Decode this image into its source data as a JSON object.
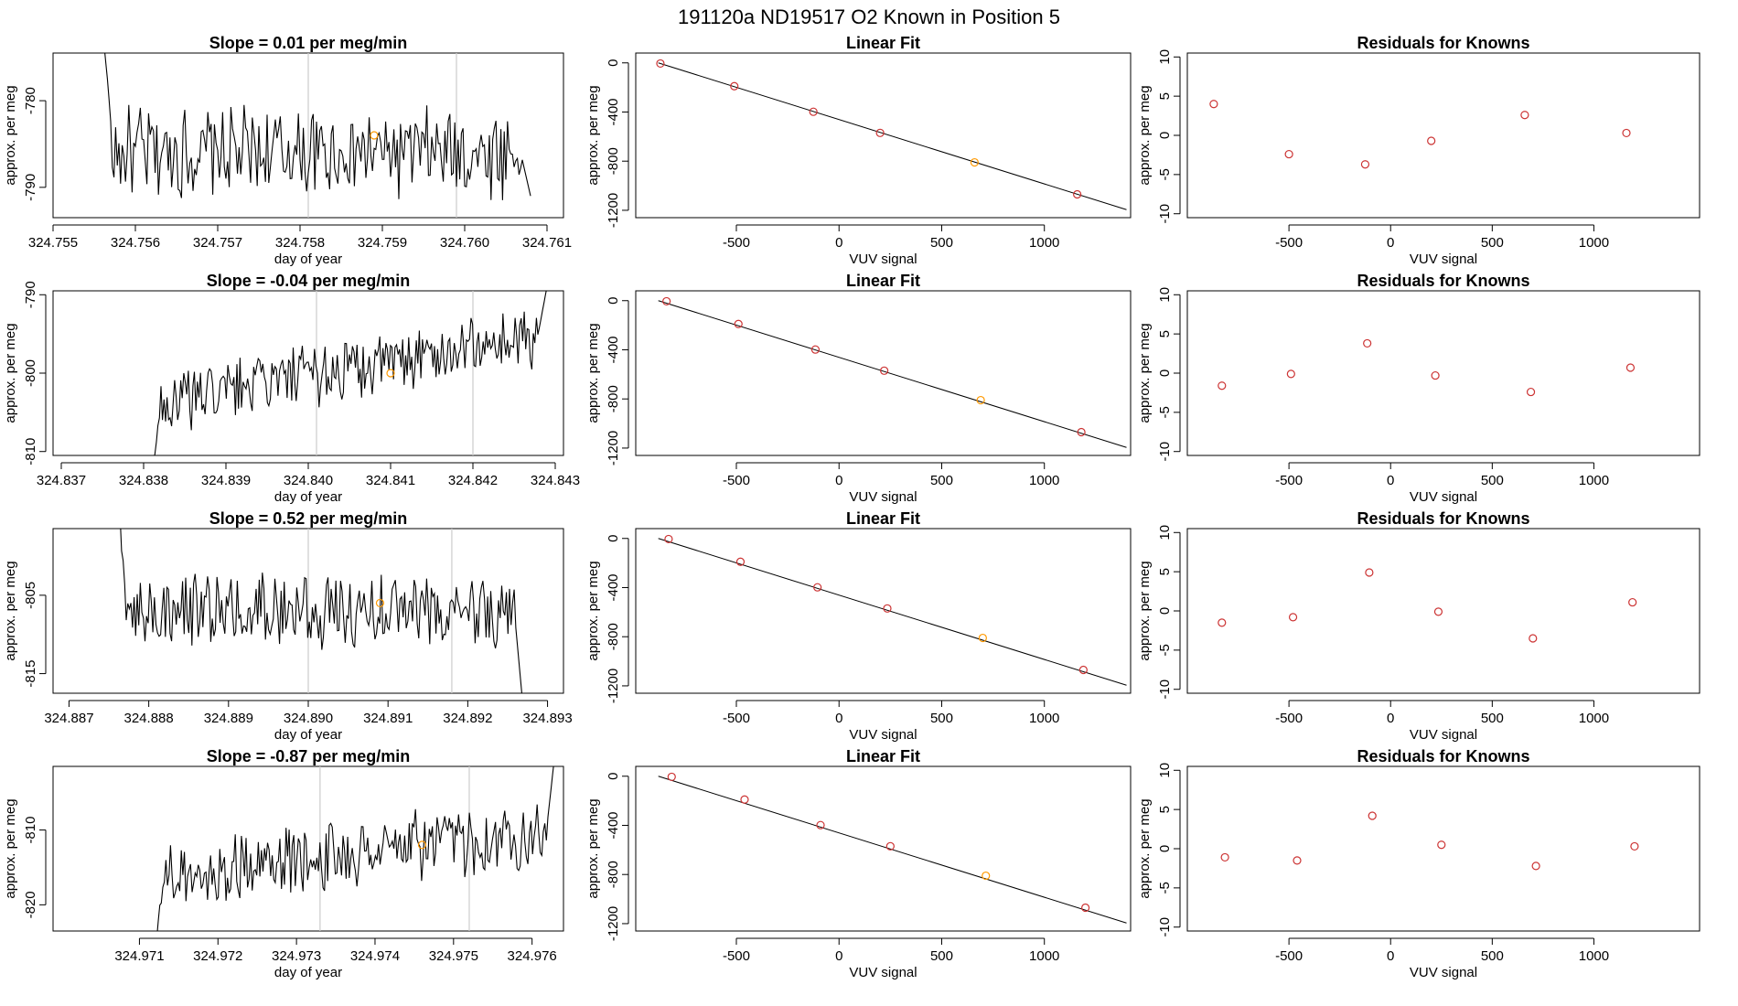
{
  "page_title": "191120a      ND19517   O2 Known in Position  5",
  "colors": {
    "line": "#000000",
    "residual": "#cc3333",
    "highlight": "#ff9900",
    "gridline": "#cccccc"
  },
  "chart_data": [
    {
      "row": 0,
      "panel": "timeseries",
      "type": "line",
      "title": "Slope =  0.01  per meg/min",
      "xlabel": "day of year",
      "ylabel": "approx. per meg",
      "xlim": [
        324.755,
        324.7612
      ],
      "ylim": [
        -793.5,
        -774.5
      ],
      "xticks": [
        "324.755",
        "324.756",
        "324.757",
        "324.758",
        "324.759",
        "324.760",
        "324.761"
      ],
      "xtick_values": [
        324.755,
        324.756,
        324.757,
        324.758,
        324.759,
        324.76,
        324.761
      ],
      "yticks": [
        "-780",
        "-790"
      ],
      "ytick_values": [
        -780,
        -790
      ],
      "vlines": [
        324.7581,
        324.7599
      ],
      "x_start": 324.7556,
      "x_end": 324.7608,
      "y_start": -770,
      "y_end": -791,
      "y_center": -786,
      "y_amp": 4.5,
      "marker": {
        "x": 324.7589,
        "y": -784
      }
    },
    {
      "row": 0,
      "panel": "fit",
      "type": "scatter",
      "title": "Linear Fit",
      "xlabel": "VUV signal",
      "ylabel": "approx. per meg",
      "xlim": [
        -990,
        1420
      ],
      "ylim": [
        -1260,
        80
      ],
      "xticks": [
        "-500",
        "0",
        "500",
        "1000"
      ],
      "xtick_values": [
        -500,
        0,
        500,
        1000
      ],
      "yticks": [
        "0",
        "-400",
        "-800",
        "-1200"
      ],
      "ytick_values": [
        0,
        -400,
        -800,
        -1200
      ],
      "line": [
        [
          -880,
          0
        ],
        [
          1400,
          -1195
        ]
      ],
      "points": [
        {
          "x": -870,
          "y": -5
        },
        {
          "x": -510,
          "y": -190
        },
        {
          "x": -125,
          "y": -398
        },
        {
          "x": 200,
          "y": -570
        },
        {
          "x": 660,
          "y": -810,
          "highlight": true
        },
        {
          "x": 1160,
          "y": -1070
        }
      ]
    },
    {
      "row": 0,
      "panel": "residuals",
      "type": "scatter",
      "title": "Residuals for Knowns",
      "xlabel": "VUV signal",
      "ylabel": "approx. per meg",
      "xlim": [
        -1000,
        1520
      ],
      "ylim": [
        -10.5,
        10.5
      ],
      "xticks": [
        "-500",
        "0",
        "500",
        "1000"
      ],
      "xtick_values": [
        -500,
        0,
        500,
        1000
      ],
      "yticks": [
        "10",
        "5",
        "0",
        "-5",
        "-10"
      ],
      "ytick_values": [
        10,
        5,
        0,
        -5,
        -10
      ],
      "points": [
        {
          "x": -870,
          "y": 4.0
        },
        {
          "x": -500,
          "y": -2.4
        },
        {
          "x": -125,
          "y": -3.7
        },
        {
          "x": 200,
          "y": -0.7
        },
        {
          "x": 660,
          "y": 2.6
        },
        {
          "x": 1160,
          "y": 0.3
        }
      ]
    },
    {
      "row": 1,
      "panel": "timeseries",
      "type": "line",
      "title": "Slope =  -0.04  per meg/min",
      "xlabel": "day of year",
      "ylabel": "approx. per meg",
      "xlim": [
        324.8369,
        324.8431
      ],
      "ylim": [
        -810.5,
        -789.5
      ],
      "xticks": [
        "324.837",
        "324.838",
        "324.839",
        "324.840",
        "324.841",
        "324.842",
        "324.843"
      ],
      "xtick_values": [
        324.837,
        324.838,
        324.839,
        324.84,
        324.841,
        324.842,
        324.843
      ],
      "yticks": [
        "-790",
        "-800",
        "-810"
      ],
      "ytick_values": [
        -790,
        -800,
        -810
      ],
      "vlines": [
        324.8401,
        324.842
      ],
      "x_start": 324.8381,
      "x_end": 324.8429,
      "y_start": -813,
      "y_end": -789,
      "y_center_start": -804,
      "y_center_end": -795,
      "y_amp": 3.5,
      "marker": {
        "x": 324.841,
        "y": -800
      }
    },
    {
      "row": 1,
      "panel": "fit",
      "type": "scatter",
      "title": "Linear Fit",
      "xlabel": "VUV signal",
      "ylabel": "approx. per meg",
      "xlim": [
        -990,
        1420
      ],
      "ylim": [
        -1260,
        80
      ],
      "xticks": [
        "-500",
        "0",
        "500",
        "1000"
      ],
      "xtick_values": [
        -500,
        0,
        500,
        1000
      ],
      "yticks": [
        "0",
        "-400",
        "-800",
        "-1200"
      ],
      "ytick_values": [
        0,
        -400,
        -800,
        -1200
      ],
      "line": [
        [
          -880,
          0
        ],
        [
          1400,
          -1195
        ]
      ],
      "points": [
        {
          "x": -840,
          "y": -5
        },
        {
          "x": -490,
          "y": -190
        },
        {
          "x": -115,
          "y": -398
        },
        {
          "x": 220,
          "y": -570
        },
        {
          "x": 690,
          "y": -810,
          "highlight": true
        },
        {
          "x": 1180,
          "y": -1070
        }
      ]
    },
    {
      "row": 1,
      "panel": "residuals",
      "type": "scatter",
      "title": "Residuals for Knowns",
      "xlabel": "VUV signal",
      "ylabel": "approx. per meg",
      "xlim": [
        -1000,
        1520
      ],
      "ylim": [
        -10.5,
        10.5
      ],
      "xticks": [
        "-500",
        "0",
        "500",
        "1000"
      ],
      "xtick_values": [
        -500,
        0,
        500,
        1000
      ],
      "yticks": [
        "10",
        "5",
        "0",
        "-5",
        "-10"
      ],
      "ytick_values": [
        10,
        5,
        0,
        -5,
        -10
      ],
      "points": [
        {
          "x": -830,
          "y": -1.6
        },
        {
          "x": -490,
          "y": -0.1
        },
        {
          "x": -115,
          "y": 3.8
        },
        {
          "x": 220,
          "y": -0.3
        },
        {
          "x": 690,
          "y": -2.4
        },
        {
          "x": 1180,
          "y": 0.7
        }
      ]
    },
    {
      "row": 2,
      "panel": "timeseries",
      "type": "line",
      "title": "Slope =  0.52  per meg/min",
      "xlabel": "day of year",
      "ylabel": "approx. per meg",
      "xlim": [
        324.8868,
        324.8932
      ],
      "ylim": [
        -817.5,
        -796.5
      ],
      "xticks": [
        "324.887",
        "324.888",
        "324.889",
        "324.890",
        "324.891",
        "324.892",
        "324.893"
      ],
      "xtick_values": [
        324.887,
        324.888,
        324.889,
        324.89,
        324.891,
        324.892,
        324.893
      ],
      "yticks": [
        "-805",
        "-815"
      ],
      "ytick_values": [
        -805,
        -815
      ],
      "vlines": [
        324.89,
        324.8918
      ],
      "x_start": 324.8876,
      "x_end": 324.8927,
      "y_start": -790,
      "y_end": -820,
      "y_center": -807,
      "y_amp": 4.0,
      "marker": {
        "x": 324.8909,
        "y": -806
      }
    },
    {
      "row": 2,
      "panel": "fit",
      "type": "scatter",
      "title": "Linear Fit",
      "xlabel": "VUV signal",
      "ylabel": "approx. per meg",
      "xlim": [
        -990,
        1420
      ],
      "ylim": [
        -1260,
        80
      ],
      "xticks": [
        "-500",
        "0",
        "500",
        "1000"
      ],
      "xtick_values": [
        -500,
        0,
        500,
        1000
      ],
      "yticks": [
        "0",
        "-400",
        "-800",
        "-1200"
      ],
      "ytick_values": [
        0,
        -400,
        -800,
        -1200
      ],
      "line": [
        [
          -880,
          0
        ],
        [
          1400,
          -1195
        ]
      ],
      "points": [
        {
          "x": -830,
          "y": -5
        },
        {
          "x": -480,
          "y": -190
        },
        {
          "x": -105,
          "y": -398
        },
        {
          "x": 235,
          "y": -570
        },
        {
          "x": 700,
          "y": -810,
          "highlight": true
        },
        {
          "x": 1190,
          "y": -1070
        }
      ]
    },
    {
      "row": 2,
      "panel": "residuals",
      "type": "scatter",
      "title": "Residuals for Knowns",
      "xlabel": "VUV signal",
      "ylabel": "approx. per meg",
      "xlim": [
        -1000,
        1520
      ],
      "ylim": [
        -10.5,
        10.5
      ],
      "xticks": [
        "-500",
        "0",
        "500",
        "1000"
      ],
      "xtick_values": [
        -500,
        0,
        500,
        1000
      ],
      "yticks": [
        "10",
        "5",
        "0",
        "-5",
        "-10"
      ],
      "ytick_values": [
        10,
        5,
        0,
        -5,
        -10
      ],
      "points": [
        {
          "x": -830,
          "y": -1.5
        },
        {
          "x": -480,
          "y": -0.8
        },
        {
          "x": -105,
          "y": 4.9
        },
        {
          "x": 235,
          "y": -0.1
        },
        {
          "x": 700,
          "y": -3.5
        },
        {
          "x": 1190,
          "y": 1.1
        }
      ]
    },
    {
      "row": 3,
      "panel": "timeseries",
      "type": "line",
      "title": "Slope =  -0.87  per meg/min",
      "xlabel": "day of year",
      "ylabel": "approx. per meg",
      "xlim": [
        324.9699,
        324.9764
      ],
      "ylim": [
        -823.5,
        -801.5
      ],
      "xticks": [
        "324.971",
        "324.972",
        "324.973",
        "324.974",
        "324.975",
        "324.976"
      ],
      "xtick_values": [
        324.971,
        324.972,
        324.973,
        324.974,
        324.975,
        324.976
      ],
      "yticks": [
        "-810",
        "-820"
      ],
      "ytick_values": [
        -810,
        -820
      ],
      "vlines": [
        324.9733,
        324.9752
      ],
      "x_start": 324.9712,
      "x_end": 324.9763,
      "y_start": -826,
      "y_end": -799,
      "y_center_start": -816,
      "y_center_end": -810,
      "y_amp": 4.0,
      "marker": {
        "x": 324.9746,
        "y": -812
      }
    },
    {
      "row": 3,
      "panel": "fit",
      "type": "scatter",
      "title": "Linear Fit",
      "xlabel": "VUV signal",
      "ylabel": "approx. per meg",
      "xlim": [
        -990,
        1420
      ],
      "ylim": [
        -1260,
        80
      ],
      "xticks": [
        "-500",
        "0",
        "500",
        "1000"
      ],
      "xtick_values": [
        -500,
        0,
        500,
        1000
      ],
      "yticks": [
        "0",
        "-400",
        "-800",
        "-1200"
      ],
      "ytick_values": [
        0,
        -400,
        -800,
        -1200
      ],
      "line": [
        [
          -880,
          0
        ],
        [
          1400,
          -1195
        ]
      ],
      "points": [
        {
          "x": -815,
          "y": -5
        },
        {
          "x": -460,
          "y": -190
        },
        {
          "x": -90,
          "y": -398
        },
        {
          "x": 250,
          "y": -570
        },
        {
          "x": 715,
          "y": -810,
          "highlight": true
        },
        {
          "x": 1200,
          "y": -1070
        }
      ]
    },
    {
      "row": 3,
      "panel": "residuals",
      "type": "scatter",
      "title": "Residuals for Knowns",
      "xlabel": "VUV signal",
      "ylabel": "approx. per meg",
      "xlim": [
        -1000,
        1520
      ],
      "ylim": [
        -10.5,
        10.5
      ],
      "xticks": [
        "-500",
        "0",
        "500",
        "1000"
      ],
      "xtick_values": [
        -500,
        0,
        500,
        1000
      ],
      "yticks": [
        "10",
        "5",
        "0",
        "-5",
        "-10"
      ],
      "ytick_values": [
        10,
        5,
        0,
        -5,
        -10
      ],
      "points": [
        {
          "x": -815,
          "y": -1.1
        },
        {
          "x": -460,
          "y": -1.5
        },
        {
          "x": -90,
          "y": 4.2
        },
        {
          "x": 250,
          "y": 0.5
        },
        {
          "x": 715,
          "y": -2.2
        },
        {
          "x": 1200,
          "y": 0.3
        }
      ]
    }
  ]
}
